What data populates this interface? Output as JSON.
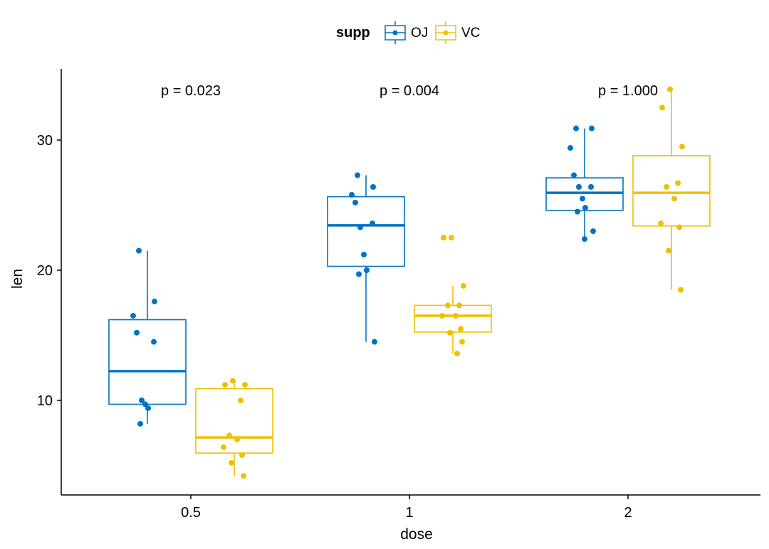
{
  "chart_data": {
    "type": "boxplot",
    "title": "",
    "xlabel": "dose",
    "ylabel": "len",
    "ylim": [
      3.5,
      35
    ],
    "yticks": [
      10,
      20,
      30
    ],
    "categories": [
      "0.5",
      "1",
      "2"
    ],
    "legend": {
      "title": "supp",
      "position": "top",
      "entries": [
        "OJ",
        "VC"
      ]
    },
    "colors": {
      "OJ": "#0073C2",
      "VC": "#EFC000",
      "axis": "#000000"
    },
    "p_values": [
      "p = 0.023",
      "p = 0.004",
      "p = 1.000"
    ],
    "series": [
      {
        "name": "OJ",
        "boxes": [
          {
            "q1": 9.7,
            "median": 12.25,
            "q3": 16.2,
            "whisker_low": 8.2,
            "whisker_high": 21.5
          },
          {
            "q1": 20.3,
            "median": 23.45,
            "q3": 25.65,
            "whisker_low": 14.5,
            "whisker_high": 27.3
          },
          {
            "q1": 24.6,
            "median": 25.95,
            "q3": 27.1,
            "whisker_low": 22.4,
            "whisker_high": 30.9
          }
        ],
        "points": [
          [
            21.5,
            17.6,
            16.5,
            15.2,
            14.5,
            10.0,
            9.7,
            9.4,
            8.2
          ],
          [
            27.3,
            26.4,
            25.8,
            25.2,
            23.6,
            23.3,
            21.2,
            20.0,
            19.7,
            14.5
          ],
          [
            30.9,
            30.9,
            29.4,
            27.3,
            26.4,
            26.4,
            25.5,
            24.8,
            24.5,
            23.0,
            22.4
          ]
        ]
      },
      {
        "name": "VC",
        "boxes": [
          {
            "q1": 5.95,
            "median": 7.15,
            "q3": 10.9,
            "whisker_low": 4.2,
            "whisker_high": 11.5
          },
          {
            "q1": 15.25,
            "median": 16.5,
            "q3": 17.3,
            "whisker_low": 13.6,
            "whisker_high": 18.8
          },
          {
            "q1": 23.4,
            "median": 25.95,
            "q3": 28.8,
            "whisker_low": 18.5,
            "whisker_high": 33.9
          }
        ],
        "points": [
          [
            11.5,
            11.2,
            11.2,
            10.0,
            7.3,
            7.0,
            6.4,
            5.8,
            5.2,
            4.2
          ],
          [
            22.5,
            22.5,
            18.8,
            17.3,
            17.3,
            16.5,
            16.5,
            15.5,
            15.2,
            14.5,
            13.6
          ],
          [
            33.9,
            32.5,
            29.5,
            26.7,
            26.4,
            25.5,
            23.6,
            23.3,
            21.5,
            18.5
          ]
        ]
      }
    ]
  }
}
